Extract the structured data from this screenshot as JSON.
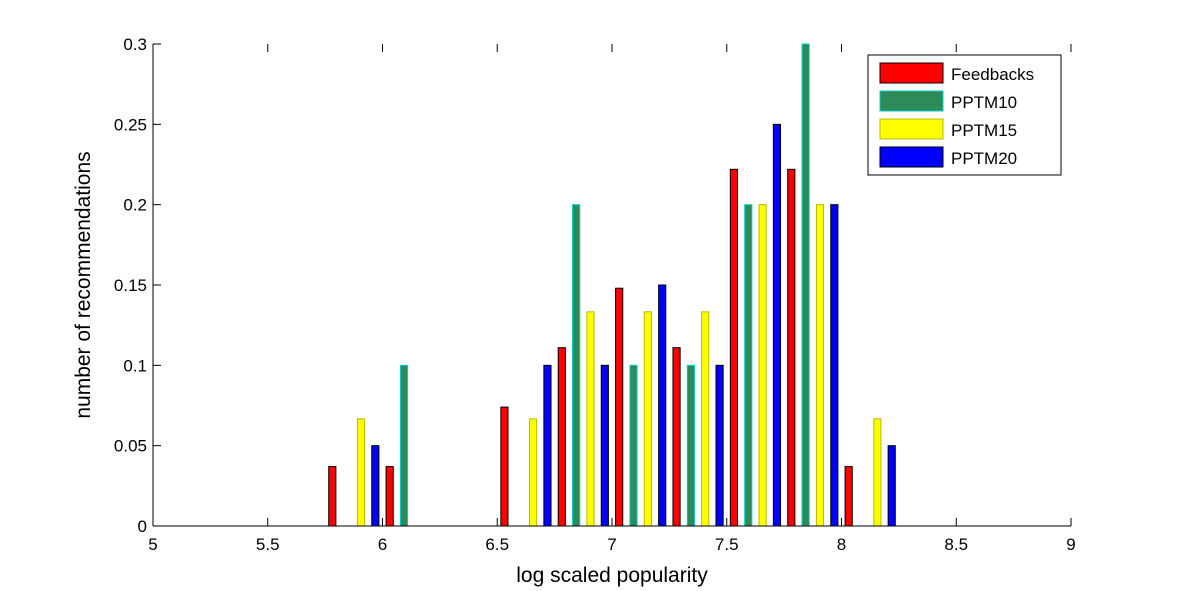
{
  "chart_data": {
    "type": "bar",
    "title": "",
    "xlabel": "log scaled popularity",
    "ylabel": "number of recommendations",
    "xlim": [
      5,
      9
    ],
    "ylim": [
      0,
      0.3
    ],
    "xticks": [
      5,
      5.5,
      6,
      6.5,
      7,
      7.5,
      8,
      8.5,
      9
    ],
    "xtick_labels": [
      "5",
      "5.5",
      "6",
      "6.5",
      "7",
      "7.5",
      "8",
      "8.5",
      "9"
    ],
    "yticks": [
      0,
      0.05,
      0.1,
      0.15,
      0.2,
      0.25,
      0.3
    ],
    "ytick_labels": [
      "0",
      "0.05",
      "0.1",
      "0.15",
      "0.2",
      "0.25",
      "0.3"
    ],
    "grid": false,
    "legend_position": "top-right",
    "categories": [
      5.125,
      5.375,
      5.625,
      5.875,
      6.125,
      6.375,
      6.625,
      6.875,
      7.125,
      7.375,
      7.625,
      7.875,
      8.125,
      8.375,
      8.625,
      8.875
    ],
    "series": [
      {
        "name": "Feedbacks",
        "color": "#ff0000",
        "edge": "#000000",
        "values": [
          0,
          0,
          0,
          0.037,
          0.037,
          0,
          0.074,
          0.111,
          0.148,
          0.111,
          0.222,
          0.222,
          0.037,
          0,
          0,
          0
        ]
      },
      {
        "name": "PPTM10",
        "color": "#2e8b57",
        "edge": "#00cccc",
        "values": [
          0,
          0,
          0,
          0,
          0.1,
          0,
          0,
          0.2,
          0.1,
          0.1,
          0.2,
          0.3,
          0,
          0,
          0,
          0
        ]
      },
      {
        "name": "PPTM15",
        "color": "#ffff00",
        "edge": "#b8b800",
        "values": [
          0,
          0,
          0,
          0.0667,
          0,
          0,
          0.0667,
          0.1333,
          0.1333,
          0.1333,
          0.2,
          0.2,
          0.0667,
          0,
          0,
          0
        ]
      },
      {
        "name": "PPTM20",
        "color": "#0000ff",
        "edge": "#000000",
        "values": [
          0,
          0,
          0,
          0.05,
          0,
          0,
          0.1,
          0.1,
          0.15,
          0.1,
          0.25,
          0.2,
          0.05,
          0,
          0,
          0
        ]
      }
    ]
  }
}
